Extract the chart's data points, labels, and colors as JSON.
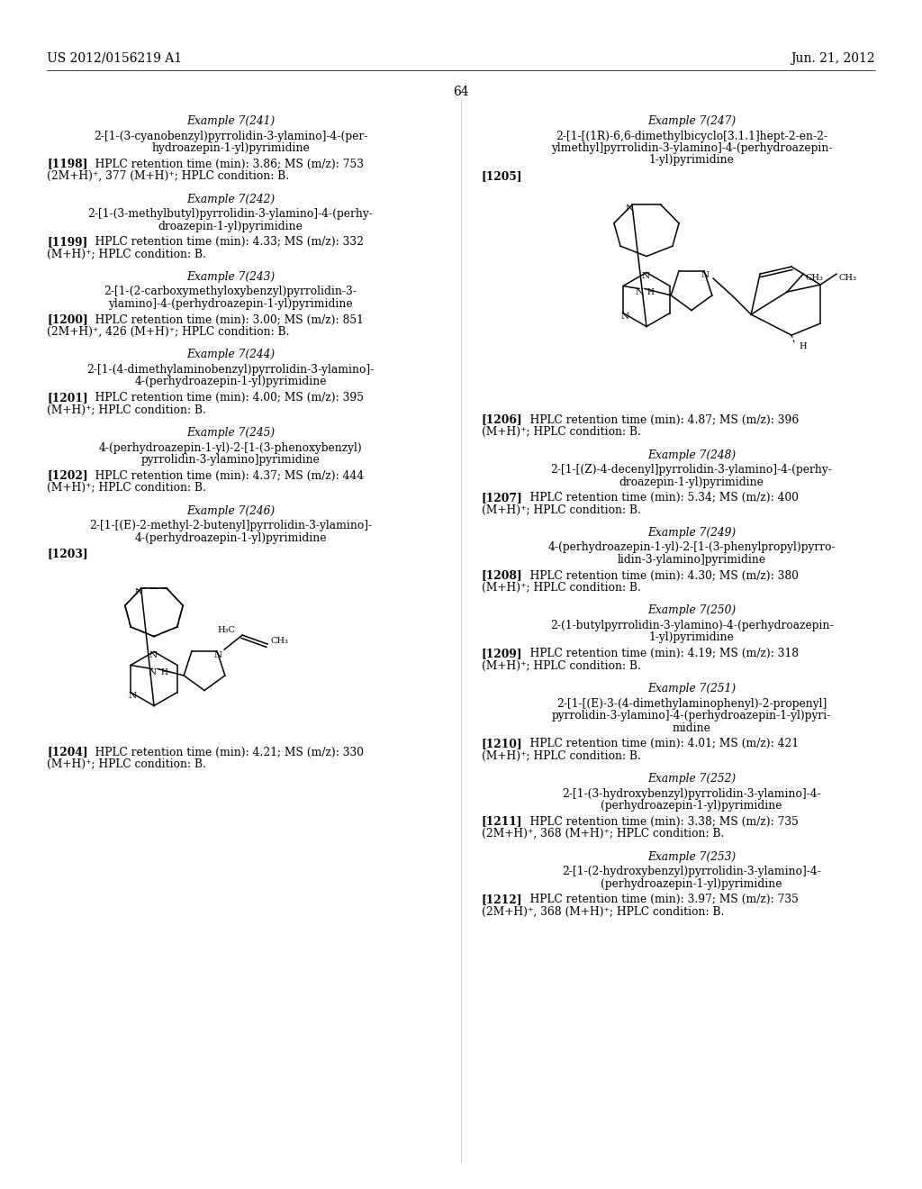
{
  "header_left": "US 2012/0156219 A1",
  "header_right": "Jun. 21, 2012",
  "page_number": "64",
  "bg": "#ffffff",
  "lw": 1.0,
  "entries_left": [
    {
      "title": "Example 7(241)",
      "name": [
        "2-[1-(3-cyanobenzyl)pyrrolidin-3-ylamino]-4-(per-",
        "hydroazepin-1-yl)pyrimidine"
      ],
      "ref": "[1198]",
      "data": [
        "HPLC retention time (min): 3.86; MS (m/z): 753",
        "(2M+H)+, 377 (M+H)+; HPLC condition: B."
      ]
    },
    {
      "title": "Example 7(242)",
      "name": [
        "2-[1-(3-methylbutyl)pyrrolidin-3-ylamino]-4-(perhy-",
        "droazepin-1-yl)pyrimidine"
      ],
      "ref": "[1199]",
      "data": [
        "HPLC retention time (min): 4.33; MS (m/z): 332",
        "(M+H)+; HPLC condition: B."
      ]
    },
    {
      "title": "Example 7(243)",
      "name": [
        "2-[1-(2-carboxymethyloxybenzyl)pyrrolidin-3-",
        "ylamino]-4-(perhydroazepin-1-yl)pyrimidine"
      ],
      "ref": "[1200]",
      "data": [
        "HPLC retention time (min): 3.00; MS (m/z): 851",
        "(2M+H)+, 426 (M+H)+; HPLC condition: B."
      ]
    },
    {
      "title": "Example 7(244)",
      "name": [
        "2-[1-(4-dimethylaminobenzyl)pyrrolidin-3-ylamino]-",
        "4-(perhydroazepin-1-yl)pyrimidine"
      ],
      "ref": "[1201]",
      "data": [
        "HPLC retention time (min): 4.00; MS (m/z): 395",
        "(M+H)+; HPLC condition: B."
      ]
    },
    {
      "title": "Example 7(245)",
      "name": [
        "4-(perhydroazepin-1-yl)-2-[1-(3-phenoxybenzyl)",
        "pyrrolidin-3-ylamino]pyrimidine"
      ],
      "ref": "[1202]",
      "data": [
        "HPLC retention time (min): 4.37; MS (m/z): 444",
        "(M+H)+; HPLC condition: B."
      ]
    },
    {
      "title": "Example 7(246)",
      "name": [
        "2-[1-[(E)-2-methyl-2-butenyl]pyrrolidin-3-ylamino]-",
        "4-(perhydroazepin-1-yl)pyrimidine"
      ],
      "ref": "[1203]",
      "data": null,
      "has_structure": "246"
    },
    {
      "ref2": "[1204]",
      "data2": [
        "HPLC retention time (min): 4.21; MS (m/z): 330",
        "(M+H)+; HPLC condition: B."
      ]
    }
  ],
  "entries_right": [
    {
      "title": "Example 7(247)",
      "name": [
        "2-[1-[(1R)-6,6-dimethylbicyclo[3.1.1]hept-2-en-2-",
        "ylmethyl]pyrrolidin-3-ylamino]-4-(perhydroazepin-",
        "1-yl)pyrimidine"
      ],
      "ref": "[1205]",
      "data": null,
      "has_structure": "247"
    },
    {
      "ref2": "[1206]",
      "data2": [
        "HPLC retention time (min): 4.87; MS (m/z): 396",
        "(M+H)+; HPLC condition: B."
      ]
    },
    {
      "title": "Example 7(248)",
      "name": [
        "2-[1-[(Z)-4-decenyl]pyrrolidin-3-ylamino]-4-(perhy-",
        "droazepin-1-yl)pyrimidine"
      ],
      "ref": "[1207]",
      "data": [
        "HPLC retention time (min): 5.34; MS (m/z): 400",
        "(M+H)+; HPLC condition: B."
      ]
    },
    {
      "title": "Example 7(249)",
      "name": [
        "4-(perhydroazepin-1-yl)-2-[1-(3-phenylpropyl)pyrro-",
        "lidin-3-ylamino]pyrimidine"
      ],
      "ref": "[1208]",
      "data": [
        "HPLC retention time (min): 4.30; MS (m/z): 380",
        "(M+H)+; HPLC condition: B."
      ]
    },
    {
      "title": "Example 7(250)",
      "name": [
        "2-(1-butylpyrrolidin-3-ylamino)-4-(perhydroazepin-",
        "1-yl)pyrimidine"
      ],
      "ref": "[1209]",
      "data": [
        "HPLC retention time (min): 4.19; MS (m/z): 318",
        "(M+H)+; HPLC condition: B."
      ]
    },
    {
      "title": "Example 7(251)",
      "name": [
        "2-[1-[(E)-3-(4-dimethylaminophenyl)-2-propenyl]",
        "pyrrolidin-3-ylamino]-4-(perhydroazepin-1-yl)pyri-",
        "midine"
      ],
      "ref": "[1210]",
      "data": [
        "HPLC retention time (min): 4.01; MS (m/z): 421",
        "(M+H)+; HPLC condition: B."
      ]
    },
    {
      "title": "Example 7(252)",
      "name": [
        "2-[1-(3-hydroxybenzyl)pyrrolidin-3-ylamino]-4-",
        "(perhydroazepin-1-yl)pyrimidine"
      ],
      "ref": "[1211]",
      "data": [
        "HPLC retention time (min): 3.38; MS (m/z): 735",
        "(2M+H)+, 368 (M+H)+; HPLC condition: B."
      ]
    },
    {
      "title": "Example 7(253)",
      "name": [
        "2-[1-(2-hydroxybenzyl)pyrrolidin-3-ylamino]-4-",
        "(perhydroazepin-1-yl)pyrimidine"
      ],
      "ref": "[1212]",
      "data": [
        "HPLC retention time (min): 3.97; MS (m/z): 735",
        "(2M+H)+, 368 (M+H)+; HPLC condition: B."
      ]
    }
  ],
  "superscript_plus": "⁺"
}
